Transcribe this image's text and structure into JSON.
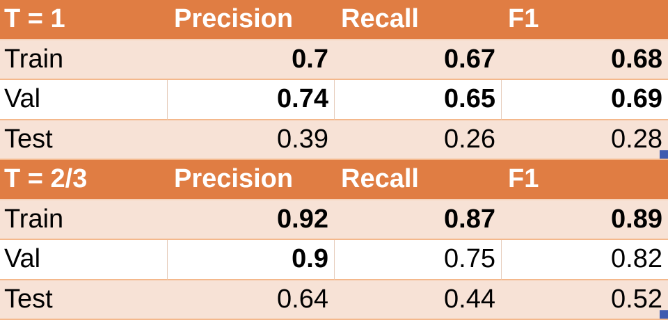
{
  "tables": [
    {
      "header": {
        "label": "T = 1",
        "columns": [
          "Precision",
          "Recall",
          "F1"
        ]
      },
      "rows": [
        {
          "name": "Train",
          "values": [
            "0.7",
            "0.67",
            "0.68"
          ],
          "bold": [
            true,
            true,
            true
          ]
        },
        {
          "name": "Val",
          "values": [
            "0.74",
            "0.65",
            "0.69"
          ],
          "bold": [
            true,
            true,
            true
          ]
        },
        {
          "name": "Test",
          "values": [
            "0.39",
            "0.26",
            "0.28"
          ],
          "bold": [
            false,
            false,
            false
          ]
        }
      ]
    },
    {
      "header": {
        "label": "T = 2/3",
        "columns": [
          "Precision",
          "Recall",
          "F1"
        ]
      },
      "rows": [
        {
          "name": "Train",
          "values": [
            "0.92",
            "0.87",
            "0.89"
          ],
          "bold": [
            true,
            true,
            true
          ]
        },
        {
          "name": "Val",
          "values": [
            "0.9",
            "0.75",
            "0.82"
          ],
          "bold": [
            true,
            false,
            false
          ]
        },
        {
          "name": "Test",
          "values": [
            "0.64",
            "0.44",
            "0.52"
          ],
          "bold": [
            false,
            false,
            false
          ]
        }
      ]
    }
  ],
  "colors": {
    "header_bg": "#e07d43",
    "band_bg": "#f7e2d6",
    "plain_bg": "#ffffff",
    "header_text": "#ffffff",
    "cell_text": "#000000"
  }
}
